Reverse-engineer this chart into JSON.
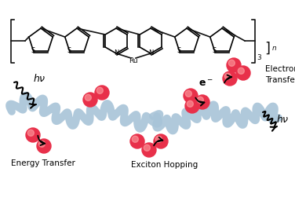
{
  "fig_width": 3.76,
  "fig_height": 2.7,
  "dpi": 100,
  "bg_color": "#ffffff",
  "polymer_color": "#a8c4d8",
  "ball_color_outer": "#e8304a",
  "ball_color_inner": "#f07080",
  "ball_highlight": "#ffaaaa",
  "arrow_color": "#111111",
  "text_color": "#111111",
  "label_energy": "Energy Transfer",
  "label_exciton": "Exciton Hopping",
  "label_electron": "Electron\nTransfer",
  "label_hv1": "hν",
  "label_hv2": "hν",
  "label_eminus": "e⁻",
  "struct_color": "#111111"
}
